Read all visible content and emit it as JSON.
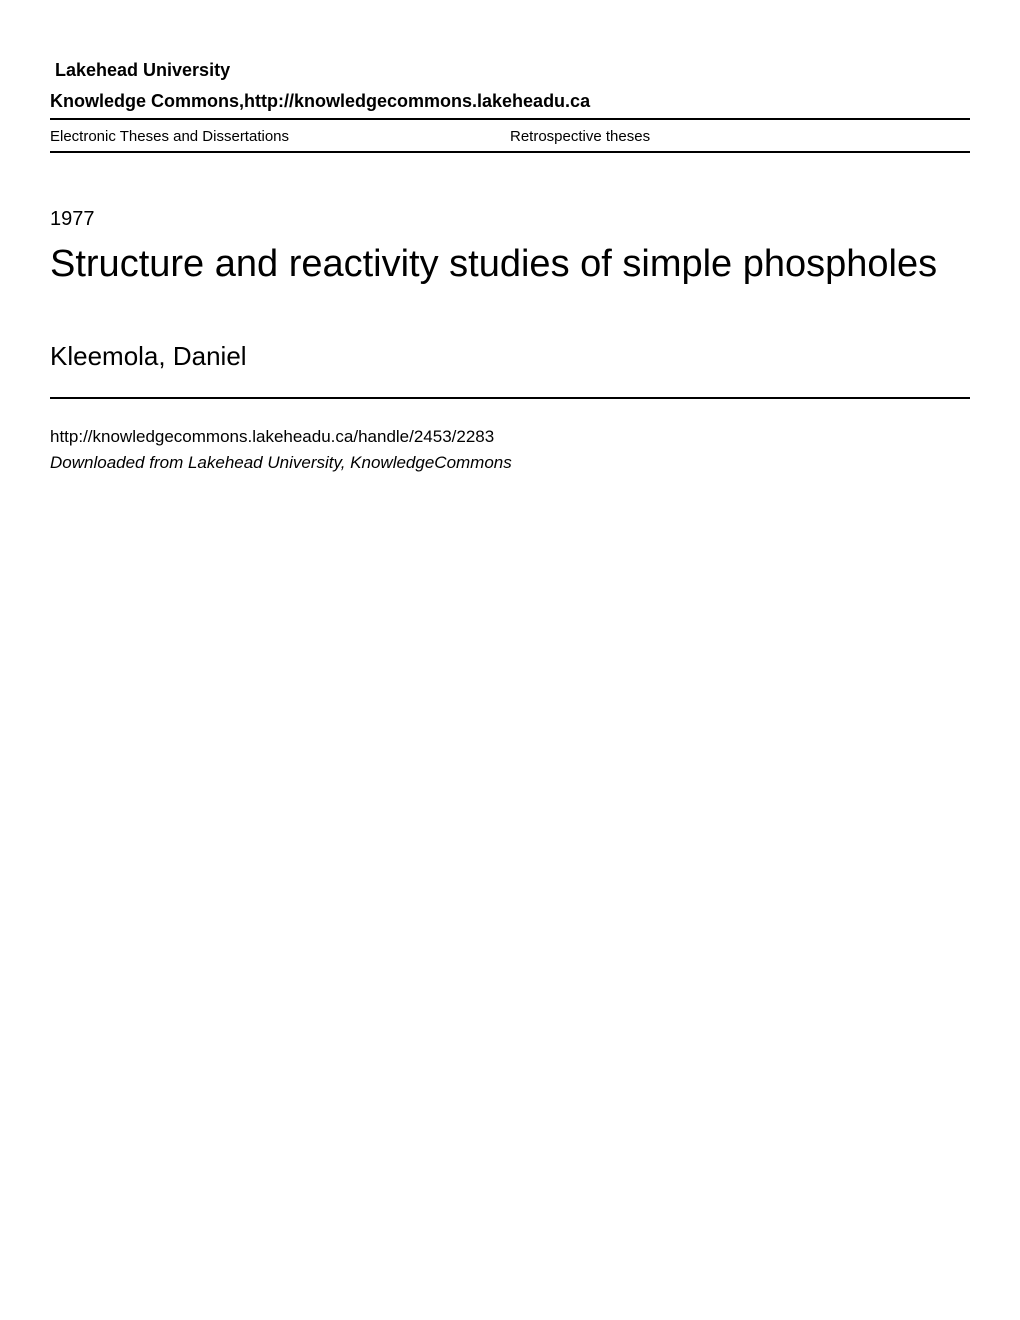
{
  "header": {
    "institution": "Lakehead University",
    "repository": "Knowledge Commons,http://knowledgecommons.lakeheadu.ca",
    "collection_left": "Electronic Theses and Dissertations",
    "collection_right": "Retrospective theses"
  },
  "record": {
    "year": "1977",
    "title": "Structure and reactivity studies of simple phospholes",
    "author": "Kleemola, Daniel",
    "handle_url": "http://knowledgecommons.lakeheadu.ca/handle/2453/2283",
    "download_note": "Downloaded from Lakehead University, KnowledgeCommons"
  },
  "colors": {
    "text": "#000000",
    "background": "#ffffff",
    "border": "#000000"
  },
  "typography": {
    "institution_fontsize": 18,
    "repository_fontsize": 18,
    "collection_fontsize": 15,
    "year_fontsize": 20,
    "title_fontsize": 38,
    "author_fontsize": 26,
    "url_fontsize": 17,
    "note_fontsize": 17
  }
}
